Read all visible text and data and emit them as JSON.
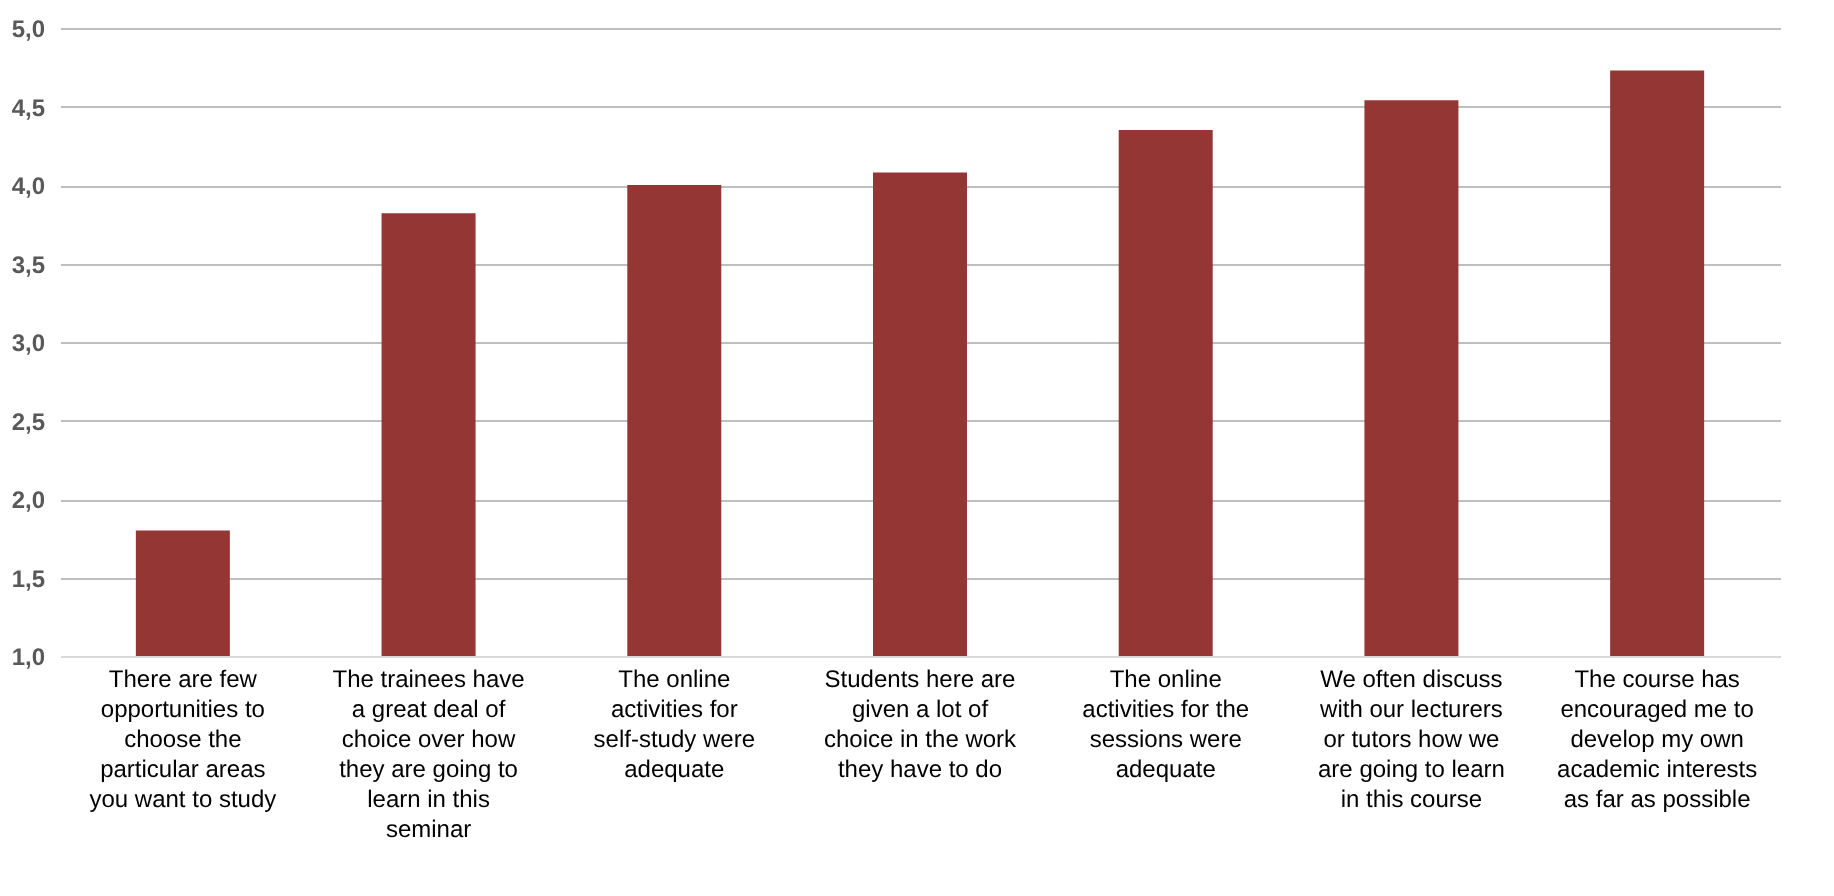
{
  "chart_data": {
    "type": "bar",
    "categories": [
      "There are few opportunities to choose the particular areas you want to study",
      "The trainees have a great deal of choice over how they are going to learn in this seminar",
      "The online activities for self-study were adequate",
      "Students here are given a lot of choice in the work they have to do",
      "The online activities for the sessions were adequate",
      "We often discuss with our lecturers or tutors how we are going to learn in this course",
      "The course has encouraged me to develop my own academic interests as far as possible"
    ],
    "values": [
      1.8,
      3.82,
      4.0,
      4.08,
      4.35,
      4.54,
      4.73
    ],
    "color": "#943634",
    "ylim": [
      1.0,
      5.0
    ],
    "yticks": [
      {
        "value": 1.0,
        "label": "1,0"
      },
      {
        "value": 1.5,
        "label": "1,5"
      },
      {
        "value": 2.0,
        "label": "2,0"
      },
      {
        "value": 2.5,
        "label": "2,5"
      },
      {
        "value": 3.0,
        "label": "3,0"
      },
      {
        "value": 3.5,
        "label": "3,5"
      },
      {
        "value": 4.0,
        "label": "4,0"
      },
      {
        "value": 4.5,
        "label": "4,5"
      },
      {
        "value": 5.0,
        "label": "5,0"
      }
    ],
    "grid": "y"
  }
}
